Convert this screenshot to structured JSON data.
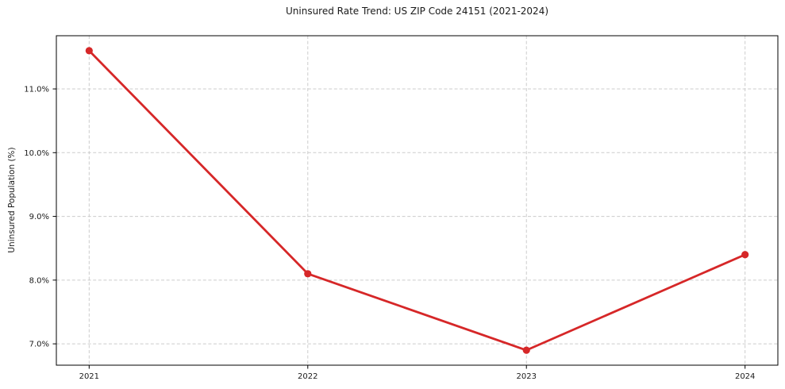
{
  "figure": {
    "background": "#ffffff"
  },
  "chart_data": {
    "type": "line",
    "title": "Uninsured Rate Trend: US ZIP Code 24151 (2021-2024)",
    "xlabel": "",
    "ylabel": "Uninsured Population (%)",
    "x": [
      2021,
      2022,
      2023,
      2024
    ],
    "series": [
      {
        "name": "uninsured-rate",
        "values": [
          11.6,
          8.1,
          6.9,
          8.4
        ],
        "color": "#d62728",
        "marker": "circle",
        "line_width": 2.8,
        "marker_radius": 4.6
      }
    ],
    "xticks": [
      2021,
      2022,
      2023,
      2024
    ],
    "xtick_labels": [
      "2021",
      "2022",
      "2023",
      "2024"
    ],
    "yticks": [
      7.0,
      8.0,
      9.0,
      10.0,
      11.0
    ],
    "ytick_labels": [
      "7.0%",
      "8.0%",
      "9.0%",
      "10.0%",
      "11.0%"
    ],
    "xlim": [
      2020.85,
      2024.15
    ],
    "ylim": [
      6.665,
      11.835
    ],
    "grid": true,
    "grid_color": "#cccccc",
    "grid_style": "dashed",
    "legend": "none",
    "spine_color": "#000000",
    "tick_color": "#000000",
    "text_color": "#1a1a1a"
  }
}
